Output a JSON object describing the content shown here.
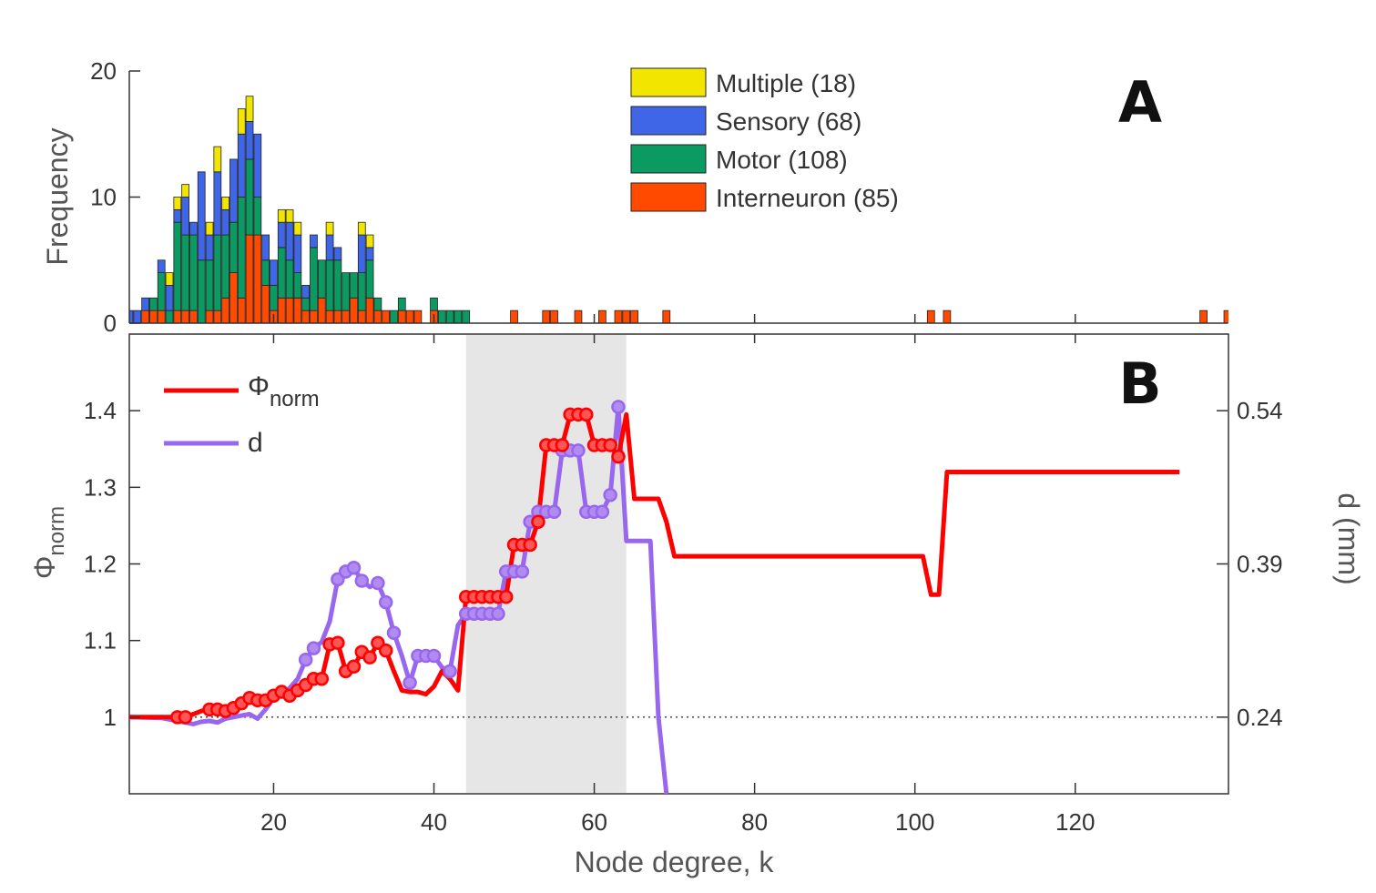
{
  "chart_data": [
    {
      "panel": "A",
      "type": "bar",
      "stacked": true,
      "ylabel": "Frequency",
      "xlim": [
        2,
        139
      ],
      "ylim": [
        0,
        20
      ],
      "yticks": [
        0,
        10,
        20
      ],
      "legend_position": "top-right",
      "colors": {
        "Multiple": "#f2e600",
        "Sensory": "#3f66e6",
        "Motor": "#0b9a62",
        "Interneuron": "#ff4a00"
      },
      "x": [
        2,
        3,
        4,
        5,
        6,
        7,
        8,
        9,
        10,
        11,
        12,
        13,
        14,
        15,
        16,
        17,
        18,
        19,
        20,
        21,
        22,
        23,
        24,
        25,
        26,
        27,
        28,
        29,
        30,
        31,
        32,
        33,
        34,
        35,
        36,
        37,
        38,
        39,
        40,
        41,
        42,
        43,
        44,
        45,
        46,
        47,
        48,
        49,
        50,
        51,
        52,
        53,
        54,
        55,
        56,
        57,
        58,
        59,
        60,
        61,
        62,
        63,
        64,
        65,
        66,
        67,
        68,
        69,
        102,
        104,
        136,
        139
      ],
      "series": [
        {
          "name": "Interneuron (85)",
          "key": "Interneuron",
          "values": [
            0,
            0,
            1,
            1,
            1,
            0,
            1,
            1,
            1,
            0,
            1,
            1,
            2,
            4,
            2,
            7,
            7,
            3,
            1,
            2,
            2,
            2,
            1,
            1,
            2,
            1,
            1,
            1,
            2,
            1,
            2,
            1,
            1,
            0,
            1,
            1,
            1,
            0,
            1,
            0,
            0,
            0,
            0,
            0,
            0,
            0,
            0,
            0,
            1,
            0,
            0,
            0,
            1,
            1,
            0,
            0,
            1,
            0,
            0,
            1,
            0,
            1,
            1,
            1,
            0,
            0,
            0,
            1,
            1,
            1,
            1,
            1
          ]
        },
        {
          "name": "Motor (108)",
          "key": "Motor",
          "values": [
            0,
            0,
            0,
            1,
            3,
            1,
            7,
            6,
            6,
            5,
            4,
            6,
            5,
            4,
            8,
            6,
            3,
            2,
            2,
            4,
            3,
            2,
            1,
            5,
            3,
            4,
            4,
            3,
            2,
            3,
            3,
            1,
            0,
            1,
            1,
            0,
            0,
            0,
            1,
            1,
            1,
            1,
            1,
            0,
            0,
            0,
            0,
            0,
            0,
            0,
            0,
            0,
            0,
            0,
            0,
            0,
            0,
            0,
            0,
            0,
            0,
            0,
            0,
            0,
            0,
            0,
            0,
            0,
            0,
            0,
            0,
            0
          ]
        },
        {
          "name": "Sensory (68)",
          "key": "Sensory",
          "values": [
            1,
            1,
            1,
            0,
            1,
            2,
            1,
            3,
            1,
            7,
            2,
            5,
            2,
            5,
            5,
            3,
            5,
            2,
            2,
            2,
            3,
            3,
            1,
            1,
            0,
            2,
            1,
            0,
            0,
            3,
            1,
            0,
            0,
            0,
            0,
            0,
            0,
            0,
            0,
            0,
            0,
            0,
            0,
            0,
            0,
            0,
            0,
            0,
            0,
            0,
            0,
            0,
            0,
            0,
            0,
            0,
            0,
            0,
            0,
            0,
            0,
            0,
            0,
            0,
            0,
            0,
            0,
            0,
            0,
            0,
            0,
            0
          ]
        },
        {
          "name": "Multiple (18)",
          "key": "Multiple",
          "values": [
            0,
            0,
            0,
            0,
            0,
            1,
            1,
            1,
            0,
            0,
            1,
            2,
            1,
            0,
            2,
            2,
            0,
            0,
            0,
            1,
            1,
            1,
            0,
            0,
            0,
            1,
            0,
            0,
            0,
            1,
            1,
            0,
            0,
            0,
            0,
            0,
            0,
            0,
            0,
            0,
            0,
            0,
            0,
            0,
            0,
            0,
            0,
            0,
            0,
            0,
            0,
            0,
            0,
            0,
            0,
            0,
            0,
            0,
            0,
            0,
            0,
            0,
            0,
            0,
            0,
            0,
            0,
            0,
            0,
            0,
            0,
            0
          ]
        }
      ]
    },
    {
      "panel": "B",
      "type": "line",
      "xlabel": "Node degree, k",
      "xlim": [
        2,
        139
      ],
      "xticks": [
        20,
        40,
        60,
        80,
        100,
        120
      ],
      "ylabel": "Φ",
      "ylabel_sub": "norm",
      "ylim": [
        0.9,
        1.5
      ],
      "yticks": [
        "1",
        "1.1",
        "1.2",
        "1.3",
        "1.4"
      ],
      "y2label": "d (mm)",
      "y2ticks": [
        "0.24",
        "0.39",
        "0.54"
      ],
      "y2_positions": [
        1.0,
        1.2,
        1.4
      ],
      "reference_line": 1.0,
      "shaded_region": [
        44,
        64
      ],
      "legend_position": "top-left",
      "series": [
        {
          "name": "Φ",
          "name_sub": "norm",
          "color": "#ff0000",
          "x": [
            2,
            8,
            9,
            10,
            11,
            12,
            13,
            14,
            15,
            16,
            17,
            18,
            19,
            20,
            21,
            22,
            23,
            24,
            25,
            26,
            27,
            28,
            29,
            30,
            31,
            32,
            33,
            34,
            35,
            36,
            37,
            38,
            39,
            40,
            41,
            42,
            43,
            44,
            45,
            46,
            47,
            48,
            49,
            50,
            51,
            52,
            53,
            54,
            55,
            56,
            57,
            58,
            59,
            60,
            61,
            62,
            63,
            64,
            65,
            66,
            67,
            68,
            69,
            70,
            100,
            101,
            102,
            103,
            104,
            105,
            133
          ],
          "y": [
            1.0,
            1.0,
            1.0,
            1.004,
            1.008,
            1.01,
            1.01,
            1.008,
            1.012,
            1.018,
            1.025,
            1.022,
            1.022,
            1.028,
            1.033,
            1.028,
            1.035,
            1.042,
            1.05,
            1.05,
            1.095,
            1.097,
            1.06,
            1.066,
            1.085,
            1.078,
            1.097,
            1.087,
            1.06,
            1.035,
            1.033,
            1.033,
            1.03,
            1.04,
            1.06,
            1.05,
            1.035,
            1.157,
            1.157,
            1.157,
            1.157,
            1.157,
            1.157,
            1.225,
            1.225,
            1.225,
            1.255,
            1.355,
            1.355,
            1.355,
            1.395,
            1.395,
            1.395,
            1.355,
            1.355,
            1.355,
            1.34,
            1.395,
            1.285,
            1.285,
            1.285,
            1.285,
            1.255,
            1.21,
            1.21,
            1.21,
            1.16,
            1.16,
            1.32,
            1.32,
            1.32
          ],
          "markers_x": [
            8,
            9,
            12,
            13,
            14,
            15,
            16,
            17,
            18,
            19,
            20,
            21,
            22,
            23,
            24,
            25,
            26,
            27,
            28,
            29,
            30,
            31,
            32,
            33,
            34,
            44,
            45,
            46,
            47,
            48,
            49,
            50,
            51,
            52,
            53,
            54,
            55,
            56,
            57,
            58,
            59,
            60,
            61,
            62,
            63
          ]
        },
        {
          "name": "d",
          "color": "#9966ee",
          "x": [
            2,
            6,
            8,
            9,
            10,
            11,
            12,
            13,
            14,
            15,
            16,
            17,
            18,
            19,
            20,
            21,
            22,
            23,
            24,
            25,
            26,
            27,
            28,
            29,
            30,
            31,
            32,
            33,
            34,
            35,
            36,
            37,
            38,
            39,
            40,
            41,
            42,
            43,
            44,
            45,
            46,
            47,
            48,
            49,
            50,
            51,
            52,
            53,
            54,
            55,
            56,
            57,
            58,
            59,
            60,
            61,
            62,
            63,
            64,
            65,
            66,
            67,
            68,
            69
          ],
          "y": [
            1.0,
            0.999,
            0.995,
            0.993,
            0.991,
            0.994,
            0.995,
            0.993,
            0.998,
            1.0,
            1.002,
            1.004,
            0.998,
            1.01,
            1.025,
            1.03,
            1.038,
            1.05,
            1.075,
            1.09,
            1.098,
            1.125,
            1.18,
            1.19,
            1.195,
            1.178,
            1.17,
            1.175,
            1.15,
            1.11,
            1.08,
            1.045,
            1.08,
            1.08,
            1.08,
            1.065,
            1.06,
            1.12,
            1.135,
            1.135,
            1.135,
            1.135,
            1.135,
            1.19,
            1.19,
            1.19,
            1.255,
            1.268,
            1.268,
            1.268,
            1.348,
            1.348,
            1.348,
            1.268,
            1.268,
            1.268,
            1.29,
            1.405,
            1.23,
            1.23,
            1.23,
            1.23,
            1.0,
            0.9
          ],
          "markers_x": [
            24,
            25,
            28,
            29,
            30,
            31,
            33,
            34,
            35,
            37,
            38,
            39,
            40,
            42,
            44,
            45,
            46,
            47,
            48,
            49,
            50,
            51,
            52,
            53,
            54,
            55,
            56,
            57,
            58,
            59,
            60,
            61,
            62,
            63
          ]
        }
      ]
    }
  ]
}
